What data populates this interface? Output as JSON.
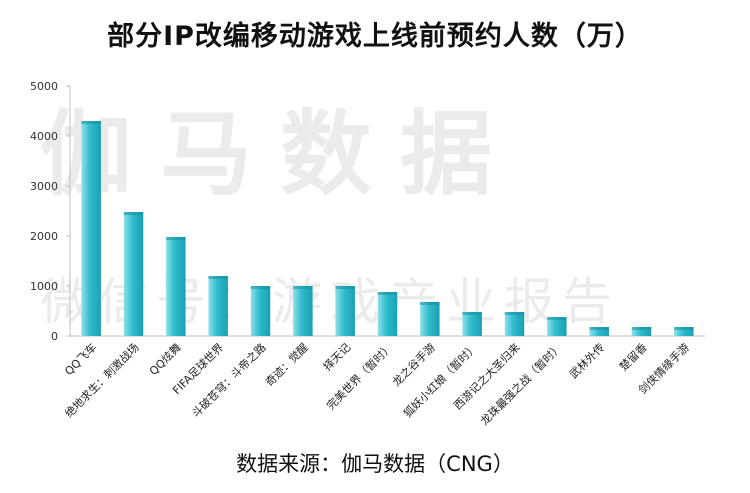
{
  "title": "部分IP改编移动游戏上线前预约人数（万）",
  "source": "数据来源：伽马数据（CNG）",
  "watermark": {
    "main": "伽马数据",
    "sub": "微信号：游戏产业报告"
  },
  "colors": {
    "bar": "#29b6c8",
    "bar_light": "#8fe0ea",
    "axis": "#bfbfbf"
  },
  "chart_data": {
    "type": "bar",
    "title": "部分IP改编移动游戏上线前预约人数（万）",
    "xlabel": "",
    "ylabel": "",
    "ylim": [
      0,
      5000
    ],
    "yticks": [
      0,
      1000,
      2000,
      3000,
      4000,
      5000
    ],
    "grid": false,
    "legend": "none",
    "categories": [
      "QQ飞车",
      "绝地求生：刺激战场",
      "QQ炫舞",
      "FIFA足球世界",
      "斗破苍穹：斗帝之路",
      "奇迹：觉醒",
      "择天记",
      "完美世界（暂时）",
      "龙之谷手游",
      "狐妖小红娘（暂时）",
      "西游记之大圣归来",
      "龙珠最强之战（暂时）",
      "武林外传",
      "楚留香",
      "剑侠情缘手游"
    ],
    "values": [
      4300,
      2480,
      1980,
      1200,
      1000,
      1000,
      1000,
      880,
      680,
      480,
      480,
      380,
      180,
      180,
      180
    ]
  }
}
